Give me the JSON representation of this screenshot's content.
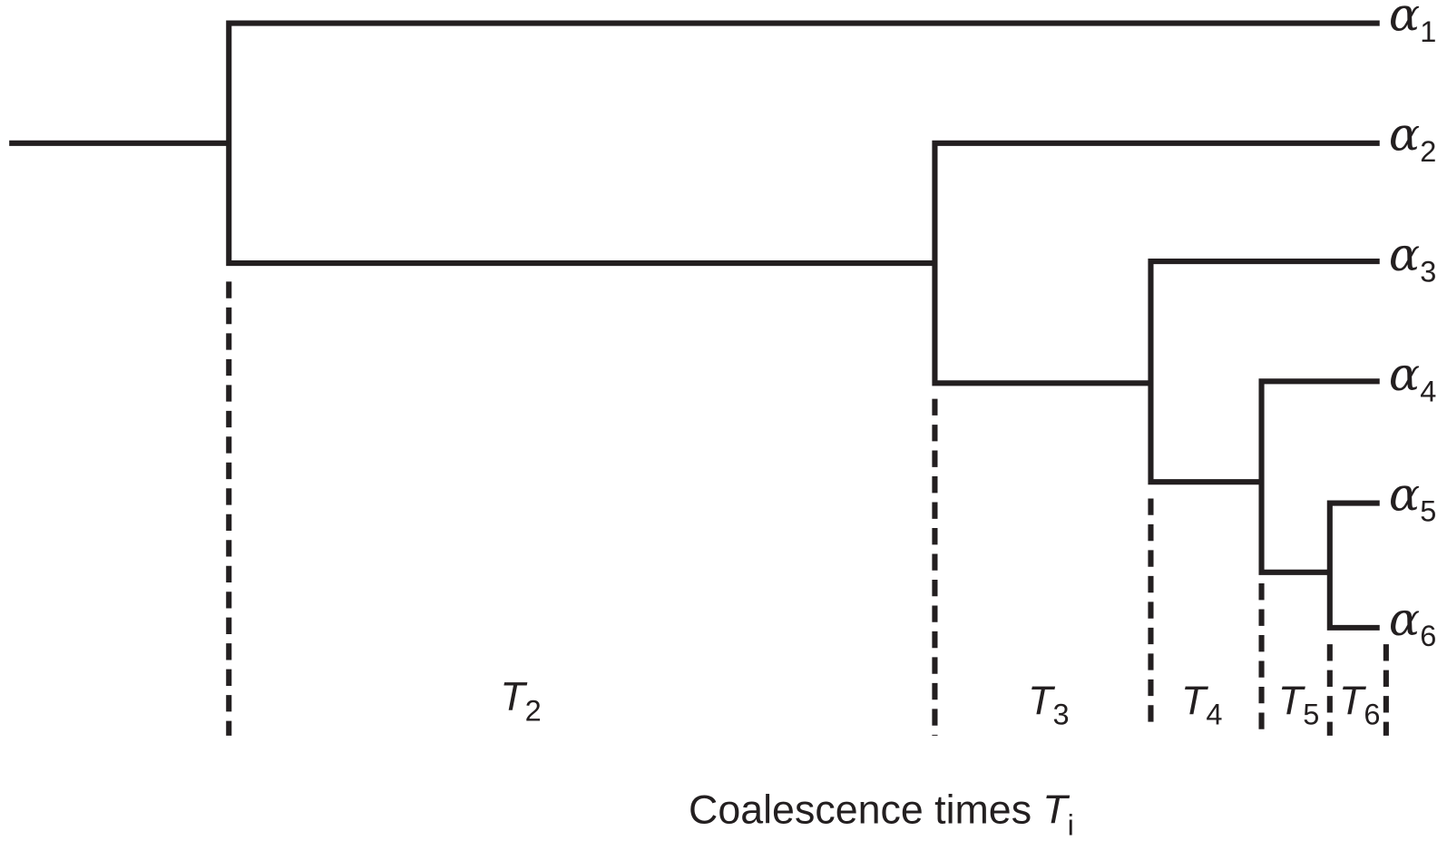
{
  "leaves": [
    {
      "symbol": "α",
      "index": "1"
    },
    {
      "symbol": "α",
      "index": "2"
    },
    {
      "symbol": "α",
      "index": "3"
    },
    {
      "symbol": "α",
      "index": "4"
    },
    {
      "symbol": "α",
      "index": "5"
    },
    {
      "symbol": "α",
      "index": "6"
    }
  ],
  "intervals": [
    {
      "symbol": "T",
      "index": "2"
    },
    {
      "symbol": "T",
      "index": "3"
    },
    {
      "symbol": "T",
      "index": "4"
    },
    {
      "symbol": "T",
      "index": "5"
    },
    {
      "symbol": "T",
      "index": "6"
    }
  ],
  "caption": {
    "text": "Coalescence times",
    "symbol": "T",
    "index": "i"
  }
}
